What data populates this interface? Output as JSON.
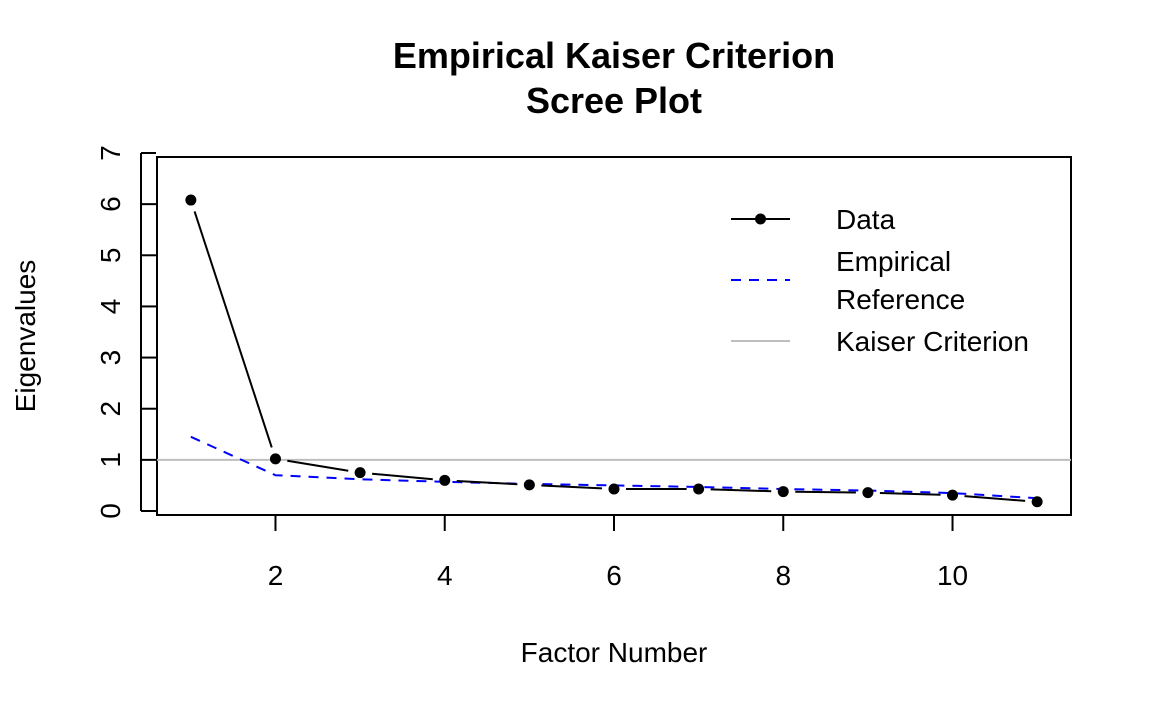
{
  "chart_data": {
    "type": "line",
    "title": "Empirical Kaiser Criterion",
    "subtitle": "Scree Plot",
    "xlabel": "Factor Number",
    "ylabel": "Eigenvalues",
    "xlim": [
      0.6,
      11.4
    ],
    "ylim": [
      0,
      7
    ],
    "x_ticks": [
      "2",
      "4",
      "6",
      "8",
      "10"
    ],
    "y_ticks": [
      "0",
      "1",
      "2",
      "3",
      "4",
      "5",
      "6",
      "7"
    ],
    "x": [
      1,
      2,
      3,
      4,
      5,
      6,
      7,
      8,
      9,
      10,
      11
    ],
    "series": [
      {
        "name": "Data",
        "values": [
          6.08,
          1.02,
          0.75,
          0.6,
          0.51,
          0.43,
          0.43,
          0.38,
          0.36,
          0.31,
          0.18
        ],
        "color": "#000000",
        "style": "solid-with-points"
      },
      {
        "name": "Empirical Reference",
        "values": [
          1.45,
          0.7,
          0.62,
          0.57,
          0.53,
          0.5,
          0.47,
          0.43,
          0.4,
          0.35,
          0.25
        ],
        "color": "#0000ff",
        "style": "dashed"
      }
    ],
    "reference_line": {
      "name": "Kaiser Criterion",
      "y": 1,
      "color": "#bebebe"
    },
    "legend": {
      "placement": "top-right",
      "entries": [
        {
          "lines": [
            "Data"
          ]
        },
        {
          "lines": [
            "Empirical",
            "Reference"
          ]
        },
        {
          "lines": [
            "Kaiser Criterion"
          ]
        }
      ]
    },
    "grid": false
  }
}
